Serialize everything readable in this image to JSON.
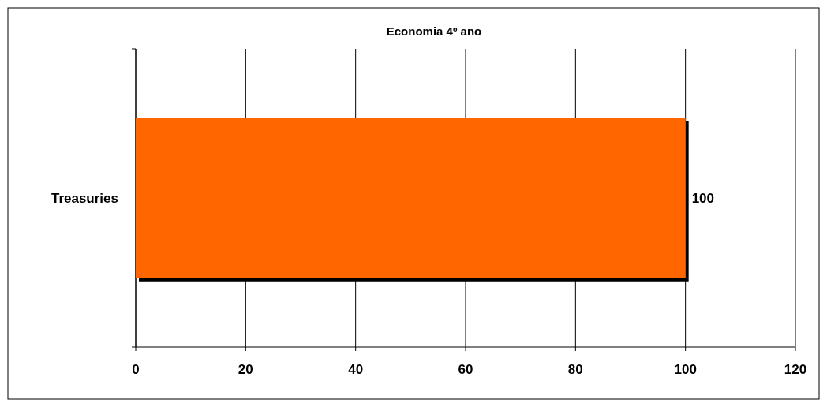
{
  "chart_data": {
    "type": "bar",
    "orientation": "horizontal",
    "title": "Economia 4º ano",
    "categories": [
      "Treasuries"
    ],
    "values": [
      100
    ],
    "color": "#ff6600",
    "xlim": [
      0,
      120
    ],
    "xticks": [
      0,
      20,
      40,
      60,
      80,
      100,
      120
    ],
    "grid": "x",
    "data_labels": true
  }
}
